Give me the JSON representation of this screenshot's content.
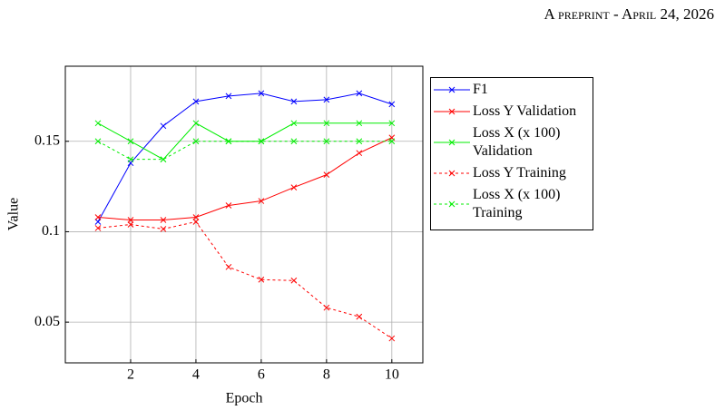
{
  "header": {
    "running_title": "A preprint - April 24, 2026"
  },
  "chart_data": {
    "type": "line",
    "xlabel": "Epoch",
    "ylabel": "Value",
    "x": [
      1,
      2,
      3,
      4,
      5,
      6,
      7,
      8,
      9,
      10
    ],
    "series": [
      {
        "name": "F1",
        "color": "#0000ff",
        "dashed": false,
        "values": [
          0.1055,
          0.138,
          0.1585,
          0.172,
          0.175,
          0.1765,
          0.172,
          0.173,
          0.1765,
          0.1705
        ]
      },
      {
        "name": "Loss Y Validation",
        "color": "#ff0000",
        "dashed": false,
        "values": [
          0.108,
          0.1065,
          0.1065,
          0.108,
          0.1145,
          0.117,
          0.1245,
          0.1315,
          0.1435,
          0.152
        ]
      },
      {
        "name": "Loss X (x 100) Validation",
        "color": "#00ee00",
        "dashed": false,
        "values": [
          0.16,
          0.15,
          0.14,
          0.16,
          0.15,
          0.15,
          0.16,
          0.16,
          0.16,
          0.16
        ]
      },
      {
        "name": "Loss Y Training",
        "color": "#ff0000",
        "dashed": true,
        "values": [
          0.102,
          0.104,
          0.1015,
          0.1055,
          0.0805,
          0.0735,
          0.073,
          0.058,
          0.053,
          0.041
        ]
      },
      {
        "name": "Loss X (x 100) Training",
        "color": "#00ee00",
        "dashed": true,
        "values": [
          0.15,
          0.14,
          0.14,
          0.15,
          0.15,
          0.15,
          0.15,
          0.15,
          0.15,
          0.15
        ]
      }
    ],
    "xlim": [
      0,
      10.95
    ],
    "ylim": [
      0.0275,
      0.1915
    ],
    "xticks": [
      2,
      4,
      6,
      8,
      10
    ],
    "yticks": [
      0.05,
      0.1,
      0.15
    ],
    "grid": true,
    "legend": "outside-right"
  }
}
